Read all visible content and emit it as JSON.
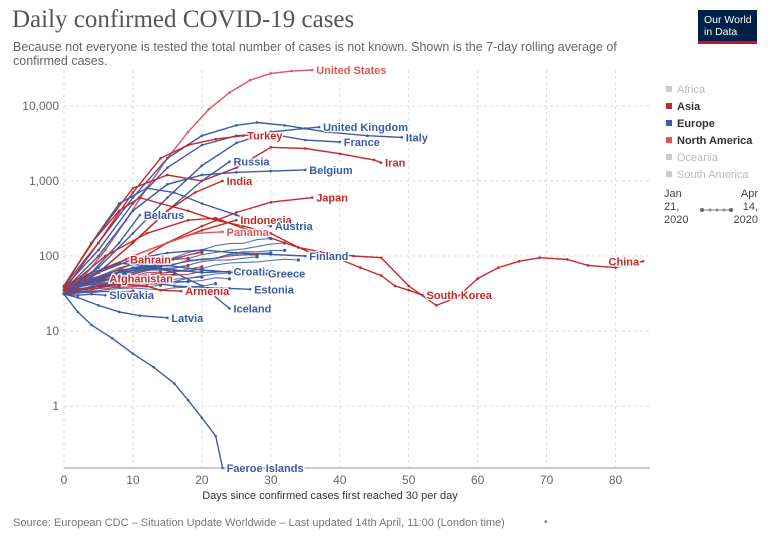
{
  "header": {
    "title": "Daily confirmed COVID-19 cases",
    "subtitle": "Because not everyone is tested the total number of cases is not known. Shown is the 7-day rolling average of confirmed cases."
  },
  "logo": {
    "line1": "Our World",
    "line2": "in Data"
  },
  "legend": {
    "items": [
      {
        "label": "Africa",
        "color": "#cccccc",
        "active": false
      },
      {
        "label": "Asia",
        "color": "#c62828",
        "active": true
      },
      {
        "label": "Europe",
        "color": "#3b5ba5",
        "active": true
      },
      {
        "label": "North America",
        "color": "#e05656",
        "active": true
      },
      {
        "label": "Oceania",
        "color": "#cccccc",
        "active": false
      },
      {
        "label": "South America",
        "color": "#cccccc",
        "active": false
      }
    ]
  },
  "time_range": {
    "start_line1": "Jan",
    "start_line2": "21,",
    "start_line3": "2020",
    "end_line1": "Apr",
    "end_line2": "14,",
    "end_line3": "2020"
  },
  "footer": {
    "source": "Source: European CDC – Situation Update Worldwide – Last updated 14th April, 11:00 (London time)",
    "dot": "•"
  },
  "chart_data": {
    "type": "line",
    "xlabel": "Days since confirmed cases first reached 30 per day",
    "ylabel": "",
    "xlim": [
      0,
      85
    ],
    "ylim": [
      0.15,
      30000
    ],
    "yscale": "log",
    "x_ticks": [
      0,
      10,
      20,
      30,
      40,
      50,
      60,
      70,
      80
    ],
    "y_ticks": [
      {
        "value": 1,
        "label": "1"
      },
      {
        "value": 10,
        "label": "10"
      },
      {
        "value": 100,
        "label": "100"
      },
      {
        "value": 1000,
        "label": "1,000"
      },
      {
        "value": 10000,
        "label": "10,000"
      }
    ],
    "grid": true,
    "legend_position": "right",
    "colors": {
      "asia": "#c62828",
      "europe": "#3b5ba5",
      "north_america": "#e05656",
      "gray": "#cccccc"
    },
    "series": [
      {
        "name": "United States",
        "region": "north_america",
        "points": [
          [
            0,
            32
          ],
          [
            3,
            55
          ],
          [
            6,
            120
          ],
          [
            9,
            300
          ],
          [
            12,
            800
          ],
          [
            15,
            2000
          ],
          [
            18,
            4500
          ],
          [
            21,
            9000
          ],
          [
            24,
            15000
          ],
          [
            27,
            22000
          ],
          [
            30,
            27000
          ],
          [
            33,
            29000
          ],
          [
            36,
            30000
          ]
        ]
      },
      {
        "name": "United Kingdom",
        "region": "europe",
        "points": [
          [
            0,
            35
          ],
          [
            5,
            70
          ],
          [
            10,
            200
          ],
          [
            15,
            600
          ],
          [
            20,
            1600
          ],
          [
            25,
            3200
          ],
          [
            30,
            4500
          ],
          [
            35,
            5000
          ],
          [
            37,
            5200
          ]
        ]
      },
      {
        "name": "Italy",
        "region": "europe",
        "points": [
          [
            0,
            40
          ],
          [
            5,
            150
          ],
          [
            10,
            600
          ],
          [
            15,
            2000
          ],
          [
            20,
            4000
          ],
          [
            25,
            5500
          ],
          [
            28,
            6000
          ],
          [
            32,
            5500
          ],
          [
            38,
            4500
          ],
          [
            44,
            4000
          ],
          [
            49,
            3800
          ]
        ]
      },
      {
        "name": "France",
        "region": "europe",
        "points": [
          [
            0,
            38
          ],
          [
            5,
            120
          ],
          [
            10,
            500
          ],
          [
            15,
            1500
          ],
          [
            20,
            3000
          ],
          [
            25,
            4000
          ],
          [
            30,
            4200
          ],
          [
            35,
            3500
          ],
          [
            40,
            3300
          ]
        ]
      },
      {
        "name": "Iran",
        "region": "asia",
        "points": [
          [
            0,
            40
          ],
          [
            5,
            200
          ],
          [
            10,
            800
          ],
          [
            15,
            1200
          ],
          [
            20,
            1000
          ],
          [
            25,
            1500
          ],
          [
            30,
            2800
          ],
          [
            35,
            2700
          ],
          [
            40,
            2300
          ],
          [
            45,
            1900
          ],
          [
            46,
            1750
          ]
        ]
      },
      {
        "name": "Turkey",
        "region": "asia",
        "points": [
          [
            0,
            35
          ],
          [
            5,
            150
          ],
          [
            10,
            700
          ],
          [
            14,
            2000
          ],
          [
            18,
            3000
          ],
          [
            22,
            3600
          ],
          [
            26,
            4000
          ]
        ]
      },
      {
        "name": "Russia",
        "region": "europe",
        "points": [
          [
            0,
            32
          ],
          [
            5,
            60
          ],
          [
            10,
            150
          ],
          [
            15,
            400
          ],
          [
            20,
            1000
          ],
          [
            24,
            1800
          ]
        ]
      },
      {
        "name": "Belgium",
        "region": "europe",
        "points": [
          [
            0,
            35
          ],
          [
            5,
            100
          ],
          [
            10,
            400
          ],
          [
            15,
            900
          ],
          [
            20,
            1200
          ],
          [
            25,
            1300
          ],
          [
            30,
            1350
          ],
          [
            35,
            1400
          ]
        ]
      },
      {
        "name": "India",
        "region": "asia",
        "points": [
          [
            0,
            32
          ],
          [
            5,
            60
          ],
          [
            10,
            150
          ],
          [
            15,
            400
          ],
          [
            19,
            700
          ],
          [
            23,
            1000
          ]
        ]
      },
      {
        "name": "Japan",
        "region": "asia",
        "points": [
          [
            0,
            35
          ],
          [
            5,
            50
          ],
          [
            10,
            80
          ],
          [
            15,
            150
          ],
          [
            20,
            250
          ],
          [
            25,
            380
          ],
          [
            30,
            520
          ],
          [
            36,
            600
          ]
        ]
      },
      {
        "name": "Belarus",
        "region": "europe",
        "points": [
          [
            0,
            32
          ],
          [
            4,
            60
          ],
          [
            8,
            150
          ],
          [
            11,
            350
          ]
        ]
      },
      {
        "name": "Indonesia",
        "region": "asia",
        "points": [
          [
            0,
            32
          ],
          [
            5,
            60
          ],
          [
            10,
            100
          ],
          [
            15,
            150
          ],
          [
            20,
            220
          ],
          [
            25,
            300
          ]
        ]
      },
      {
        "name": "Austria",
        "region": "europe",
        "points": [
          [
            0,
            40
          ],
          [
            4,
            150
          ],
          [
            8,
            500
          ],
          [
            12,
            800
          ],
          [
            16,
            700
          ],
          [
            20,
            500
          ],
          [
            25,
            350
          ],
          [
            30,
            250
          ]
        ]
      },
      {
        "name": "Panama",
        "region": "north_america",
        "points": [
          [
            0,
            32
          ],
          [
            5,
            60
          ],
          [
            10,
            100
          ],
          [
            15,
            150
          ],
          [
            19,
            200
          ],
          [
            23,
            210
          ]
        ]
      },
      {
        "name": "Bahrain",
        "region": "asia",
        "points": [
          [
            0,
            32
          ],
          [
            3,
            50
          ],
          [
            6,
            70
          ],
          [
            9,
            90
          ]
        ]
      },
      {
        "name": "Finland",
        "region": "europe",
        "points": [
          [
            0,
            32
          ],
          [
            5,
            60
          ],
          [
            10,
            90
          ],
          [
            15,
            110
          ],
          [
            20,
            120
          ],
          [
            25,
            110
          ],
          [
            30,
            105
          ],
          [
            35,
            100
          ]
        ]
      },
      {
        "name": "Afghanistan",
        "region": "asia",
        "points": [
          [
            0,
            31
          ],
          [
            2,
            38
          ],
          [
            4,
            45
          ],
          [
            6,
            50
          ]
        ]
      },
      {
        "name": "Croatia",
        "region": "europe",
        "points": [
          [
            0,
            32
          ],
          [
            4,
            50
          ],
          [
            8,
            65
          ],
          [
            12,
            70
          ],
          [
            16,
            65
          ],
          [
            20,
            60
          ],
          [
            24,
            62
          ]
        ]
      },
      {
        "name": "Greece",
        "region": "europe",
        "points": [
          [
            0,
            32
          ],
          [
            5,
            50
          ],
          [
            10,
            70
          ],
          [
            15,
            75
          ],
          [
            20,
            65
          ],
          [
            25,
            60
          ],
          [
            29,
            58
          ]
        ]
      },
      {
        "name": "Slovakia",
        "region": "europe",
        "points": [
          [
            0,
            31
          ],
          [
            2,
            30
          ],
          [
            4,
            31
          ],
          [
            6,
            30
          ]
        ]
      },
      {
        "name": "Estonia",
        "region": "europe",
        "points": [
          [
            0,
            32
          ],
          [
            4,
            45
          ],
          [
            8,
            50
          ],
          [
            12,
            45
          ],
          [
            16,
            40
          ],
          [
            20,
            38
          ],
          [
            24,
            37
          ],
          [
            27,
            36
          ]
        ]
      },
      {
        "name": "Armenia",
        "region": "asia",
        "points": [
          [
            0,
            31
          ],
          [
            4,
            38
          ],
          [
            8,
            42
          ],
          [
            12,
            40
          ],
          [
            14,
            35
          ],
          [
            17,
            34
          ]
        ]
      },
      {
        "name": "Iceland",
        "region": "europe",
        "points": [
          [
            0,
            40
          ],
          [
            4,
            60
          ],
          [
            8,
            80
          ],
          [
            12,
            75
          ],
          [
            16,
            60
          ],
          [
            20,
            40
          ],
          [
            24,
            20
          ]
        ]
      },
      {
        "name": "Latvia",
        "region": "europe",
        "points": [
          [
            0,
            31
          ],
          [
            2,
            28
          ],
          [
            5,
            22
          ],
          [
            8,
            18
          ],
          [
            11,
            16
          ],
          [
            15,
            15
          ]
        ]
      },
      {
        "name": "Faeroe Islands",
        "region": "europe",
        "points": [
          [
            0,
            31
          ],
          [
            2,
            18
          ],
          [
            4,
            12
          ],
          [
            7,
            8
          ],
          [
            10,
            5
          ],
          [
            13,
            3.3
          ],
          [
            16,
            2
          ],
          [
            18,
            1.2
          ],
          [
            20,
            0.7
          ],
          [
            22,
            0.4
          ],
          [
            23,
            0.15
          ]
        ]
      },
      {
        "name": "South Korea",
        "region": "asia",
        "points": [
          [
            0,
            40
          ],
          [
            4,
            150
          ],
          [
            8,
            400
          ],
          [
            11,
            600
          ],
          [
            14,
            500
          ],
          [
            18,
            400
          ],
          [
            22,
            300
          ],
          [
            26,
            250
          ],
          [
            30,
            200
          ],
          [
            34,
            130
          ],
          [
            37,
            100
          ],
          [
            40,
            90
          ],
          [
            43,
            70
          ],
          [
            46,
            55
          ],
          [
            48,
            40
          ],
          [
            50,
            35
          ],
          [
            52,
            30
          ]
        ]
      },
      {
        "name": "China",
        "region": "asia",
        "points": [
          [
            0,
            35
          ],
          [
            6,
            100
          ],
          [
            12,
            200
          ],
          [
            18,
            300
          ],
          [
            22,
            320
          ],
          [
            28,
            200
          ],
          [
            34,
            130
          ],
          [
            38,
            110
          ],
          [
            42,
            100
          ],
          [
            46,
            95
          ],
          [
            50,
            40
          ],
          [
            54,
            22
          ],
          [
            57,
            28
          ],
          [
            60,
            50
          ],
          [
            63,
            70
          ],
          [
            66,
            85
          ],
          [
            69,
            95
          ],
          [
            73,
            90
          ],
          [
            76,
            75
          ],
          [
            80,
            70
          ],
          [
            84,
            85
          ]
        ]
      }
    ],
    "background_lines": {
      "asia_count": 14,
      "europe_count": 16
    }
  }
}
